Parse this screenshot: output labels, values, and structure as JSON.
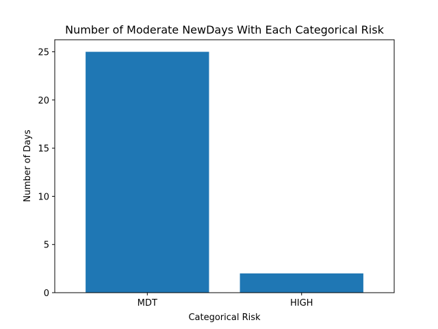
{
  "chart_data": {
    "type": "bar",
    "title": "Number of Moderate NewDays With Each Categorical Risk",
    "xlabel": "Categorical Risk",
    "ylabel": "Number of Days",
    "categories": [
      "MDT",
      "HIGH"
    ],
    "values": [
      25,
      2
    ],
    "ylim": [
      0,
      26.25
    ],
    "yticks": [
      0,
      5,
      10,
      15,
      20,
      25
    ],
    "grid": false,
    "bar_color": "#1f77b4"
  }
}
